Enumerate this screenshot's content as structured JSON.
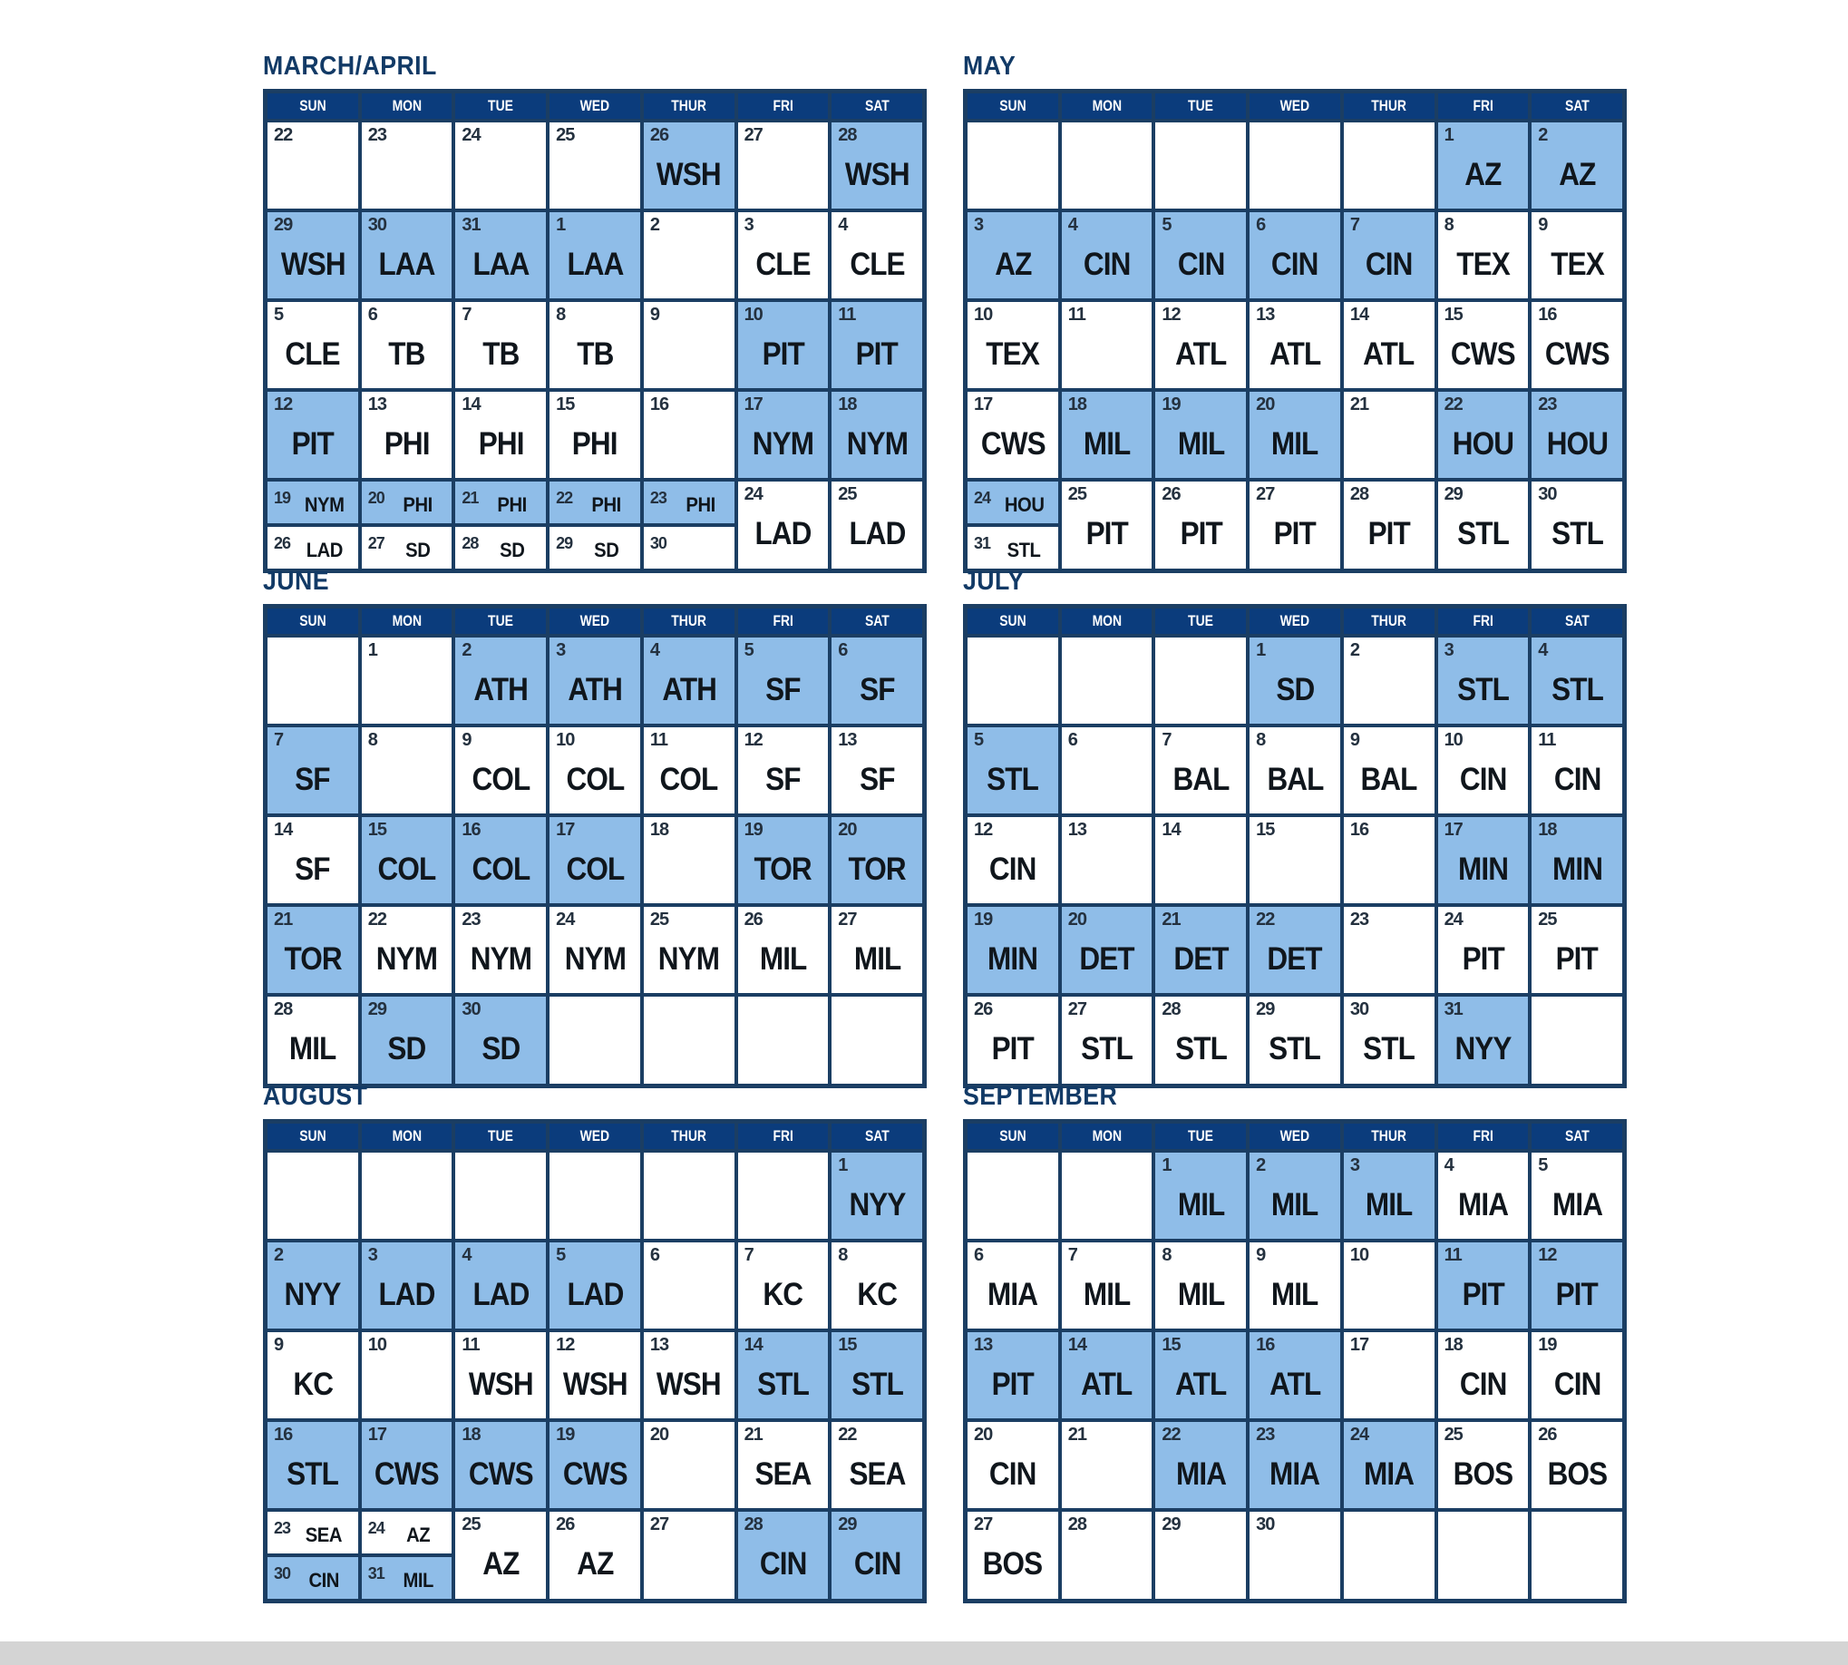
{
  "colors": {
    "header_bg": "#0b3c7c",
    "home_highlight": "#8fbde8",
    "grid_border": "#1b3e63",
    "title_text": "#123a66",
    "away_cell": "#ffffff"
  },
  "weekday_headers": [
    "SUN",
    "MON",
    "TUE",
    "WED",
    "THUR",
    "FRI",
    "SAT"
  ],
  "months": [
    {
      "name": "MARCH/APRIL",
      "weeks": [
        [
          {
            "day": "22"
          },
          {
            "day": "23"
          },
          {
            "day": "24"
          },
          {
            "day": "25"
          },
          {
            "day": "26",
            "team": "WSH",
            "home": true
          },
          {
            "day": "27"
          },
          {
            "day": "28",
            "team": "WSH",
            "home": true
          }
        ],
        [
          {
            "day": "29",
            "team": "WSH",
            "home": true
          },
          {
            "day": "30",
            "team": "LAA",
            "home": true
          },
          {
            "day": "31",
            "team": "LAA",
            "home": true
          },
          {
            "day": "1",
            "team": "LAA",
            "home": true
          },
          {
            "day": "2"
          },
          {
            "day": "3",
            "team": "CLE"
          },
          {
            "day": "4",
            "team": "CLE"
          }
        ],
        [
          {
            "day": "5",
            "team": "CLE"
          },
          {
            "day": "6",
            "team": "TB"
          },
          {
            "day": "7",
            "team": "TB"
          },
          {
            "day": "8",
            "team": "TB"
          },
          {
            "day": "9"
          },
          {
            "day": "10",
            "team": "PIT",
            "home": true
          },
          {
            "day": "11",
            "team": "PIT",
            "home": true
          }
        ],
        [
          {
            "day": "12",
            "team": "PIT",
            "home": true
          },
          {
            "day": "13",
            "team": "PHI"
          },
          {
            "day": "14",
            "team": "PHI"
          },
          {
            "day": "15",
            "team": "PHI"
          },
          {
            "day": "16"
          },
          {
            "day": "17",
            "team": "NYM",
            "home": true
          },
          {
            "day": "18",
            "team": "NYM",
            "home": true
          }
        ],
        [
          {
            "split": true,
            "top": {
              "day": "19",
              "team": "NYM",
              "home": true
            },
            "bottom": {
              "day": "26",
              "team": "LAD"
            }
          },
          {
            "split": true,
            "top": {
              "day": "20",
              "team": "PHI",
              "home": true
            },
            "bottom": {
              "day": "27",
              "team": "SD"
            }
          },
          {
            "split": true,
            "top": {
              "day": "21",
              "team": "PHI",
              "home": true
            },
            "bottom": {
              "day": "28",
              "team": "SD"
            }
          },
          {
            "split": true,
            "top": {
              "day": "22",
              "team": "PHI",
              "home": true
            },
            "bottom": {
              "day": "29",
              "team": "SD"
            }
          },
          {
            "split": true,
            "top": {
              "day": "23",
              "team": "PHI",
              "home": true
            },
            "bottom": {
              "day": "30"
            }
          },
          {
            "day": "24",
            "team": "LAD"
          },
          {
            "day": "25",
            "team": "LAD"
          }
        ]
      ]
    },
    {
      "name": "MAY",
      "weeks": [
        [
          {},
          {},
          {},
          {},
          {},
          {
            "day": "1",
            "team": "AZ",
            "home": true
          },
          {
            "day": "2",
            "team": "AZ",
            "home": true
          }
        ],
        [
          {
            "day": "3",
            "team": "AZ",
            "home": true
          },
          {
            "day": "4",
            "team": "CIN",
            "home": true
          },
          {
            "day": "5",
            "team": "CIN",
            "home": true
          },
          {
            "day": "6",
            "team": "CIN",
            "home": true
          },
          {
            "day": "7",
            "team": "CIN",
            "home": true
          },
          {
            "day": "8",
            "team": "TEX"
          },
          {
            "day": "9",
            "team": "TEX"
          }
        ],
        [
          {
            "day": "10",
            "team": "TEX"
          },
          {
            "day": "11"
          },
          {
            "day": "12",
            "team": "ATL"
          },
          {
            "day": "13",
            "team": "ATL"
          },
          {
            "day": "14",
            "team": "ATL"
          },
          {
            "day": "15",
            "team": "CWS"
          },
          {
            "day": "16",
            "team": "CWS"
          }
        ],
        [
          {
            "day": "17",
            "team": "CWS"
          },
          {
            "day": "18",
            "team": "MIL",
            "home": true
          },
          {
            "day": "19",
            "team": "MIL",
            "home": true
          },
          {
            "day": "20",
            "team": "MIL",
            "home": true
          },
          {
            "day": "21"
          },
          {
            "day": "22",
            "team": "HOU",
            "home": true
          },
          {
            "day": "23",
            "team": "HOU",
            "home": true
          }
        ],
        [
          {
            "split": true,
            "top": {
              "day": "24",
              "team": "HOU",
              "home": true
            },
            "bottom": {
              "day": "31",
              "team": "STL"
            }
          },
          {
            "day": "25",
            "team": "PIT"
          },
          {
            "day": "26",
            "team": "PIT"
          },
          {
            "day": "27",
            "team": "PIT"
          },
          {
            "day": "28",
            "team": "PIT"
          },
          {
            "day": "29",
            "team": "STL"
          },
          {
            "day": "30",
            "team": "STL"
          }
        ]
      ]
    },
    {
      "name": "JUNE",
      "weeks": [
        [
          {},
          {
            "day": "1"
          },
          {
            "day": "2",
            "team": "ATH",
            "home": true
          },
          {
            "day": "3",
            "team": "ATH",
            "home": true
          },
          {
            "day": "4",
            "team": "ATH",
            "home": true
          },
          {
            "day": "5",
            "team": "SF",
            "home": true
          },
          {
            "day": "6",
            "team": "SF",
            "home": true
          }
        ],
        [
          {
            "day": "7",
            "team": "SF",
            "home": true
          },
          {
            "day": "8"
          },
          {
            "day": "9",
            "team": "COL"
          },
          {
            "day": "10",
            "team": "COL"
          },
          {
            "day": "11",
            "team": "COL"
          },
          {
            "day": "12",
            "team": "SF"
          },
          {
            "day": "13",
            "team": "SF"
          }
        ],
        [
          {
            "day": "14",
            "team": "SF"
          },
          {
            "day": "15",
            "team": "COL",
            "home": true
          },
          {
            "day": "16",
            "team": "COL",
            "home": true
          },
          {
            "day": "17",
            "team": "COL",
            "home": true
          },
          {
            "day": "18"
          },
          {
            "day": "19",
            "team": "TOR",
            "home": true
          },
          {
            "day": "20",
            "team": "TOR",
            "home": true
          }
        ],
        [
          {
            "day": "21",
            "team": "TOR",
            "home": true
          },
          {
            "day": "22",
            "team": "NYM"
          },
          {
            "day": "23",
            "team": "NYM"
          },
          {
            "day": "24",
            "team": "NYM"
          },
          {
            "day": "25",
            "team": "NYM"
          },
          {
            "day": "26",
            "team": "MIL"
          },
          {
            "day": "27",
            "team": "MIL"
          }
        ],
        [
          {
            "day": "28",
            "team": "MIL"
          },
          {
            "day": "29",
            "team": "SD",
            "home": true
          },
          {
            "day": "30",
            "team": "SD",
            "home": true
          },
          {},
          {},
          {},
          {}
        ]
      ]
    },
    {
      "name": "JULY",
      "weeks": [
        [
          {},
          {},
          {},
          {
            "day": "1",
            "team": "SD",
            "home": true
          },
          {
            "day": "2"
          },
          {
            "day": "3",
            "team": "STL",
            "home": true
          },
          {
            "day": "4",
            "team": "STL",
            "home": true
          }
        ],
        [
          {
            "day": "5",
            "team": "STL",
            "home": true
          },
          {
            "day": "6"
          },
          {
            "day": "7",
            "team": "BAL"
          },
          {
            "day": "8",
            "team": "BAL"
          },
          {
            "day": "9",
            "team": "BAL"
          },
          {
            "day": "10",
            "team": "CIN"
          },
          {
            "day": "11",
            "team": "CIN"
          }
        ],
        [
          {
            "day": "12",
            "team": "CIN"
          },
          {
            "day": "13"
          },
          {
            "day": "14"
          },
          {
            "day": "15"
          },
          {
            "day": "16"
          },
          {
            "day": "17",
            "team": "MIN",
            "home": true
          },
          {
            "day": "18",
            "team": "MIN",
            "home": true
          }
        ],
        [
          {
            "day": "19",
            "team": "MIN",
            "home": true
          },
          {
            "day": "20",
            "team": "DET",
            "home": true
          },
          {
            "day": "21",
            "team": "DET",
            "home": true
          },
          {
            "day": "22",
            "team": "DET",
            "home": true
          },
          {
            "day": "23"
          },
          {
            "day": "24",
            "team": "PIT"
          },
          {
            "day": "25",
            "team": "PIT"
          }
        ],
        [
          {
            "day": "26",
            "team": "PIT"
          },
          {
            "day": "27",
            "team": "STL"
          },
          {
            "day": "28",
            "team": "STL"
          },
          {
            "day": "29",
            "team": "STL"
          },
          {
            "day": "30",
            "team": "STL"
          },
          {
            "day": "31",
            "team": "NYY",
            "home": true
          },
          {}
        ]
      ]
    },
    {
      "name": "AUGUST",
      "weeks": [
        [
          {},
          {},
          {},
          {},
          {},
          {},
          {
            "day": "1",
            "team": "NYY",
            "home": true
          }
        ],
        [
          {
            "day": "2",
            "team": "NYY",
            "home": true
          },
          {
            "day": "3",
            "team": "LAD",
            "home": true
          },
          {
            "day": "4",
            "team": "LAD",
            "home": true
          },
          {
            "day": "5",
            "team": "LAD",
            "home": true
          },
          {
            "day": "6"
          },
          {
            "day": "7",
            "team": "KC"
          },
          {
            "day": "8",
            "team": "KC"
          }
        ],
        [
          {
            "day": "9",
            "team": "KC"
          },
          {
            "day": "10"
          },
          {
            "day": "11",
            "team": "WSH"
          },
          {
            "day": "12",
            "team": "WSH"
          },
          {
            "day": "13",
            "team": "WSH"
          },
          {
            "day": "14",
            "team": "STL",
            "home": true
          },
          {
            "day": "15",
            "team": "STL",
            "home": true
          }
        ],
        [
          {
            "day": "16",
            "team": "STL",
            "home": true
          },
          {
            "day": "17",
            "team": "CWS",
            "home": true
          },
          {
            "day": "18",
            "team": "CWS",
            "home": true
          },
          {
            "day": "19",
            "team": "CWS",
            "home": true
          },
          {
            "day": "20"
          },
          {
            "day": "21",
            "team": "SEA"
          },
          {
            "day": "22",
            "team": "SEA"
          }
        ],
        [
          {
            "split": true,
            "top": {
              "day": "23",
              "team": "SEA"
            },
            "bottom": {
              "day": "30",
              "team": "CIN",
              "home": true
            }
          },
          {
            "split": true,
            "top": {
              "day": "24",
              "team": "AZ"
            },
            "bottom": {
              "day": "31",
              "team": "MIL",
              "home": true
            }
          },
          {
            "day": "25",
            "team": "AZ"
          },
          {
            "day": "26",
            "team": "AZ"
          },
          {
            "day": "27"
          },
          {
            "day": "28",
            "team": "CIN",
            "home": true
          },
          {
            "day": "29",
            "team": "CIN",
            "home": true
          }
        ]
      ]
    },
    {
      "name": "SEPTEMBER",
      "weeks": [
        [
          {},
          {},
          {
            "day": "1",
            "team": "MIL",
            "home": true
          },
          {
            "day": "2",
            "team": "MIL",
            "home": true
          },
          {
            "day": "3",
            "team": "MIL",
            "home": true
          },
          {
            "day": "4",
            "team": "MIA"
          },
          {
            "day": "5",
            "team": "MIA"
          }
        ],
        [
          {
            "day": "6",
            "team": "MIA"
          },
          {
            "day": "7",
            "team": "MIL"
          },
          {
            "day": "8",
            "team": "MIL"
          },
          {
            "day": "9",
            "team": "MIL"
          },
          {
            "day": "10"
          },
          {
            "day": "11",
            "team": "PIT",
            "home": true
          },
          {
            "day": "12",
            "team": "PIT",
            "home": true
          }
        ],
        [
          {
            "day": "13",
            "team": "PIT",
            "home": true
          },
          {
            "day": "14",
            "team": "ATL",
            "home": true
          },
          {
            "day": "15",
            "team": "ATL",
            "home": true
          },
          {
            "day": "16",
            "team": "ATL",
            "home": true
          },
          {
            "day": "17"
          },
          {
            "day": "18",
            "team": "CIN"
          },
          {
            "day": "19",
            "team": "CIN"
          }
        ],
        [
          {
            "day": "20",
            "team": "CIN"
          },
          {
            "day": "21"
          },
          {
            "day": "22",
            "team": "MIA",
            "home": true
          },
          {
            "day": "23",
            "team": "MIA",
            "home": true
          },
          {
            "day": "24",
            "team": "MIA",
            "home": true
          },
          {
            "day": "25",
            "team": "BOS"
          },
          {
            "day": "26",
            "team": "BOS"
          }
        ],
        [
          {
            "day": "27",
            "team": "BOS"
          },
          {
            "day": "28"
          },
          {
            "day": "29"
          },
          {
            "day": "30"
          },
          {},
          {},
          {}
        ]
      ]
    }
  ]
}
